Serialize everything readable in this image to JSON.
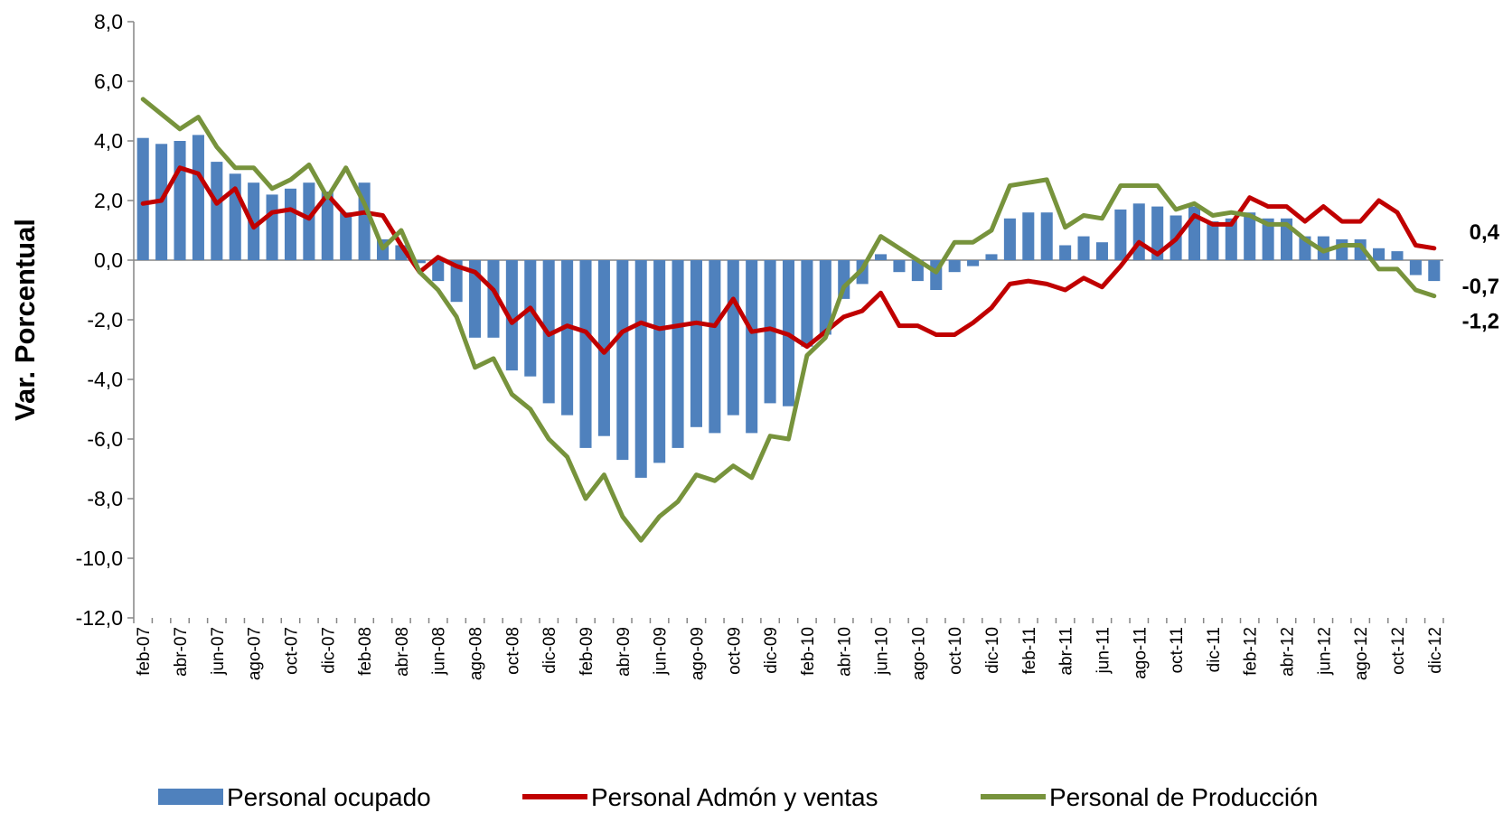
{
  "chart_data": {
    "type": "bar-line",
    "ylabel": "Var. Porcentual",
    "categories": [
      "feb-07",
      null,
      "abr-07",
      null,
      "jun-07",
      null,
      "ago-07",
      null,
      "oct-07",
      null,
      "dic-07",
      null,
      "feb-08",
      null,
      "abr-08",
      null,
      "jun-08",
      null,
      "ago-08",
      null,
      "oct-08",
      null,
      "dic-08",
      null,
      "feb-09",
      null,
      "abr-09",
      null,
      "jun-09",
      null,
      "ago-09",
      null,
      "oct-09",
      null,
      "dic-09",
      null,
      "feb-10",
      null,
      "abr-10",
      null,
      "jun-10",
      null,
      "ago-10",
      null,
      "oct-10",
      null,
      "dic-10",
      null,
      "feb-11",
      null,
      "abr-11",
      null,
      "jun-11",
      null,
      "ago-11",
      null,
      "oct-11",
      null,
      "dic-11",
      null,
      "feb-12",
      null,
      "abr-12",
      null,
      "jun-12",
      null,
      "ago-12",
      null,
      "oct-12",
      null,
      "dic-12"
    ],
    "series": [
      {
        "name": "Personal ocupado",
        "type": "bar",
        "color": "#4f81bd",
        "label_color": "#1f3864",
        "values": [
          4.1,
          3.9,
          4.0,
          4.2,
          3.3,
          2.9,
          2.6,
          2.2,
          2.4,
          2.6,
          2.3,
          1.6,
          2.6,
          0.7,
          0.5,
          -0.1,
          -0.7,
          -1.4,
          -2.6,
          -2.6,
          -3.7,
          -3.9,
          -4.8,
          -5.2,
          -6.3,
          -5.9,
          -6.7,
          -7.3,
          -6.8,
          -6.3,
          -5.6,
          -5.8,
          -5.2,
          -5.8,
          -4.8,
          -4.9,
          -2.9,
          -2.5,
          -1.3,
          -0.8,
          0.2,
          -0.4,
          -0.7,
          -1.0,
          -0.4,
          -0.2,
          0.2,
          1.4,
          1.6,
          1.6,
          0.5,
          0.8,
          0.6,
          1.7,
          1.9,
          1.8,
          1.5,
          1.8,
          1.3,
          1.4,
          1.6,
          1.4,
          1.4,
          0.8,
          0.8,
          0.7,
          0.7,
          0.4,
          0.3,
          -0.5,
          -0.7
        ],
        "value_labels": [
          null,
          null,
          null,
          null,
          null,
          null,
          null,
          null,
          null,
          null,
          null,
          null,
          null,
          null,
          null,
          null,
          null,
          null,
          null,
          null,
          null,
          null,
          null,
          null,
          null,
          null,
          null,
          null,
          null,
          null,
          null,
          null,
          null,
          null,
          null,
          null,
          null,
          null,
          null,
          null,
          null,
          null,
          null,
          null,
          null,
          null,
          null,
          null,
          null,
          null,
          null,
          null,
          null,
          null,
          null,
          null,
          null,
          null,
          null,
          null,
          null,
          null,
          null,
          null,
          null,
          null,
          null,
          null,
          null,
          null,
          "-0,7"
        ]
      },
      {
        "name": "Personal Admón y ventas",
        "type": "line",
        "color": "#c00000",
        "label_color": "#c00000",
        "values": [
          1.9,
          2.0,
          3.1,
          2.9,
          1.9,
          2.4,
          1.1,
          1.6,
          1.7,
          1.4,
          2.2,
          1.5,
          1.6,
          1.5,
          0.5,
          -0.4,
          0.1,
          -0.2,
          -0.4,
          -1.0,
          -2.1,
          -1.6,
          -2.5,
          -2.2,
          -2.4,
          -3.1,
          -2.4,
          -2.1,
          -2.3,
          -2.2,
          -2.1,
          -2.2,
          -1.3,
          -2.4,
          -2.3,
          -2.5,
          -2.9,
          -2.4,
          -1.9,
          -1.7,
          -1.1,
          -2.2,
          -2.2,
          -2.5,
          -2.5,
          -2.1,
          -1.6,
          -0.8,
          -0.7,
          -0.8,
          -1.0,
          -0.6,
          -0.9,
          -0.2,
          0.6,
          0.2,
          0.7,
          1.5,
          1.2,
          1.2,
          2.1,
          1.8,
          1.8,
          1.3,
          1.8,
          1.3,
          1.3,
          2.0,
          1.6,
          0.5,
          0.4
        ],
        "value_labels": [
          null,
          null,
          null,
          null,
          null,
          null,
          null,
          null,
          null,
          null,
          null,
          null,
          null,
          null,
          null,
          null,
          null,
          null,
          null,
          null,
          null,
          null,
          null,
          null,
          null,
          null,
          null,
          null,
          null,
          null,
          null,
          null,
          null,
          null,
          null,
          null,
          null,
          null,
          null,
          null,
          null,
          null,
          null,
          null,
          null,
          null,
          null,
          null,
          null,
          null,
          null,
          null,
          null,
          null,
          null,
          null,
          null,
          null,
          null,
          null,
          null,
          null,
          null,
          null,
          null,
          null,
          null,
          null,
          null,
          null,
          "0,4"
        ]
      },
      {
        "name": "Personal de Producción",
        "type": "line",
        "color": "#77933c",
        "label_color": "#5f7a2c",
        "values": [
          5.4,
          4.9,
          4.4,
          4.8,
          3.8,
          3.1,
          3.1,
          2.4,
          2.7,
          3.2,
          2.1,
          3.1,
          1.9,
          0.4,
          1.0,
          -0.4,
          -1.0,
          -1.9,
          -3.6,
          -3.3,
          -4.5,
          -5.0,
          -6.0,
          -6.6,
          -8.0,
          -7.2,
          -8.6,
          -9.4,
          -8.6,
          -8.1,
          -7.2,
          -7.4,
          -6.9,
          -7.3,
          -5.9,
          -6.0,
          -3.2,
          -2.6,
          -0.9,
          -0.3,
          0.8,
          0.4,
          0.0,
          -0.4,
          0.6,
          0.6,
          1.0,
          2.5,
          2.6,
          2.7,
          1.1,
          1.5,
          1.4,
          2.5,
          2.5,
          2.5,
          1.7,
          1.9,
          1.5,
          1.6,
          1.5,
          1.2,
          1.2,
          0.7,
          0.3,
          0.5,
          0.5,
          -0.3,
          -0.3,
          -1.0,
          -1.2
        ],
        "value_labels": [
          null,
          null,
          null,
          null,
          null,
          null,
          null,
          null,
          null,
          null,
          null,
          null,
          null,
          null,
          null,
          null,
          null,
          null,
          null,
          null,
          null,
          null,
          null,
          null,
          null,
          null,
          null,
          null,
          null,
          null,
          null,
          null,
          null,
          null,
          null,
          null,
          null,
          null,
          null,
          null,
          null,
          null,
          null,
          null,
          null,
          null,
          null,
          null,
          null,
          null,
          null,
          null,
          null,
          null,
          null,
          null,
          null,
          null,
          null,
          null,
          null,
          null,
          null,
          null,
          null,
          null,
          null,
          null,
          null,
          null,
          "-1,2"
        ]
      }
    ],
    "ylim": [
      -12,
      8
    ],
    "yticks": [
      {
        "value": -12,
        "label": "-12,0"
      },
      {
        "value": -10,
        "label": "-10,0"
      },
      {
        "value": -8,
        "label": "-8,0"
      },
      {
        "value": -6,
        "label": "-6,0"
      },
      {
        "value": -4,
        "label": "-4,0"
      },
      {
        "value": -2,
        "label": "-2,0"
      },
      {
        "value": 0,
        "label": "0,0"
      },
      {
        "value": 2,
        "label": "2,0"
      },
      {
        "value": 4,
        "label": "4,0"
      },
      {
        "value": 6,
        "label": "6,0"
      },
      {
        "value": 8,
        "label": "8,0"
      }
    ],
    "grid": false,
    "legend": "bottom"
  }
}
